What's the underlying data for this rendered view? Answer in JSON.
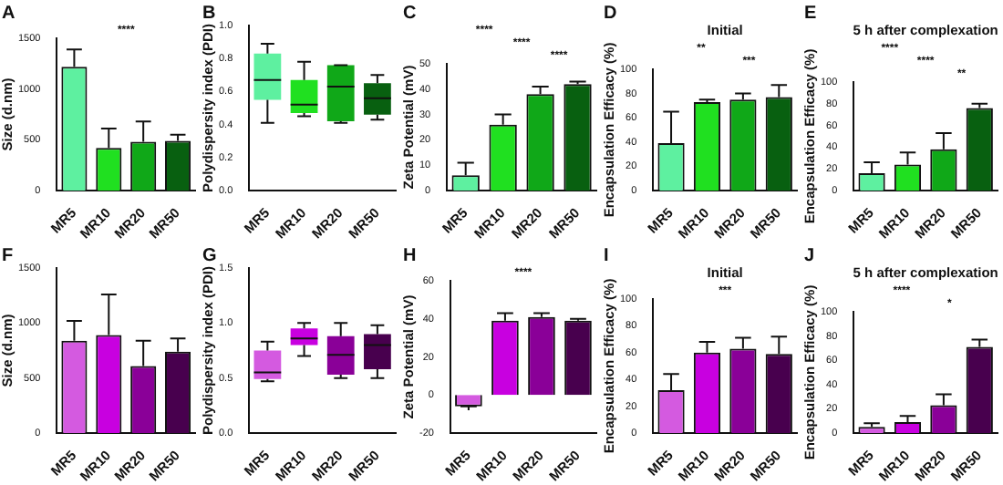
{
  "chart_data": [
    {
      "type": "bar",
      "categories": [
        "MR5",
        "MR10",
        "MR20",
        "MR50"
      ],
      "values": [
        1220,
        420,
        480,
        490
      ],
      "errors": [
        [
          1220,
          1390
        ],
        [
          420,
          610
        ],
        [
          480,
          680
        ],
        [
          490,
          550
        ]
      ],
      "colors": [
        "#5ef0a0",
        "#20e020",
        "#10a818",
        "#086010"
      ],
      "ylabel": "Size (d.nm)",
      "ylim": [
        0,
        1500
      ],
      "yticks": [
        0,
        500,
        1000,
        1500
      ],
      "annotations": [
        "A",
        "****"
      ]
    },
    {
      "type": "box",
      "categories": [
        "MR5",
        "MR10",
        "MR20",
        "MR50"
      ],
      "boxes": [
        {
          "low": 0.41,
          "q1": 0.55,
          "median": 0.67,
          "q3": 0.83,
          "high": 0.89
        },
        {
          "low": 0.45,
          "q1": 0.47,
          "median": 0.52,
          "q3": 0.67,
          "high": 0.78
        },
        {
          "low": 0.41,
          "q1": 0.42,
          "median": 0.63,
          "q3": 0.76,
          "high": 0.76
        },
        {
          "low": 0.43,
          "q1": 0.46,
          "median": 0.56,
          "q3": 0.65,
          "high": 0.7
        }
      ],
      "colors": [
        "#5ef0a0",
        "#20e020",
        "#10a818",
        "#086010"
      ],
      "ylabel": "Polydispersity index (PDI)",
      "ylim": [
        0,
        1
      ],
      "yticks": [
        {
          "value": 0,
          "label": "0.0"
        },
        {
          "value": 0.2,
          "label": "0.2"
        },
        {
          "value": 0.4,
          "label": "0.4"
        },
        {
          "value": 0.6,
          "label": "0.6"
        },
        {
          "value": 0.8,
          "label": "0.8"
        },
        {
          "value": 1,
          "label": "1.0"
        }
      ],
      "annotations": [
        "B"
      ]
    },
    {
      "type": "bar",
      "categories": [
        "MR5",
        "MR10",
        "MR20",
        "MR50"
      ],
      "values": [
        6,
        26,
        38,
        42
      ],
      "errors": [
        [
          6,
          11
        ],
        [
          26,
          30
        ],
        [
          38,
          41
        ],
        [
          42,
          43
        ]
      ],
      "colors": [
        "#5ef0a0",
        "#20e020",
        "#10a818",
        "#086010"
      ],
      "ylabel": "Zeta Potential (mV)",
      "ylim": [
        0,
        50
      ],
      "yticks": [
        0,
        10,
        20,
        30,
        40,
        50
      ],
      "annotations": [
        "C",
        "****",
        "****",
        "****"
      ]
    },
    {
      "type": "bar",
      "title": "Initial",
      "categories": [
        "MR5",
        "MR10",
        "MR20",
        "MR50"
      ],
      "values": [
        39,
        73,
        75,
        77
      ],
      "errors": [
        [
          39,
          65
        ],
        [
          73,
          75
        ],
        [
          75,
          80
        ],
        [
          77,
          87
        ]
      ],
      "colors": [
        "#5ef0a0",
        "#20e020",
        "#10a818",
        "#086010"
      ],
      "ylabel": "Encapsulation Efficacy (%)",
      "ylim": [
        0,
        100
      ],
      "yticks": [
        0,
        20,
        40,
        60,
        80,
        100
      ],
      "annotations": [
        "D",
        "**",
        "***"
      ]
    },
    {
      "type": "bar",
      "title": "5 h after complexation",
      "categories": [
        "MR5",
        "MR10",
        "MR20",
        "MR50"
      ],
      "values": [
        16,
        24,
        38,
        76
      ],
      "errors": [
        [
          16,
          26
        ],
        [
          24,
          35
        ],
        [
          38,
          53
        ],
        [
          76,
          80
        ]
      ],
      "colors": [
        "#5ef0a0",
        "#20e020",
        "#10a818",
        "#086010"
      ],
      "ylabel": "Encapsulation Efficacy (%)",
      "ylim": [
        0,
        100
      ],
      "yticks": [
        0,
        20,
        40,
        60,
        80,
        100
      ],
      "annotations": [
        "E",
        "****",
        "****",
        "**"
      ]
    },
    {
      "type": "bar",
      "categories": [
        "MR5",
        "MR10",
        "MR20",
        "MR50"
      ],
      "values": [
        840,
        890,
        610,
        740
      ],
      "errors": [
        [
          840,
          1020
        ],
        [
          890,
          1260
        ],
        [
          610,
          840
        ],
        [
          740,
          860
        ]
      ],
      "colors": [
        "#d45ae0",
        "#c800e0",
        "#8a0098",
        "#48004e"
      ],
      "ylabel": "Size (d.nm)",
      "ylim": [
        0,
        1500
      ],
      "yticks": [
        0,
        500,
        1000,
        1500
      ],
      "annotations": [
        "F"
      ]
    },
    {
      "type": "box",
      "categories": [
        "MR5",
        "MR10",
        "MR20",
        "MR50"
      ],
      "boxes": [
        {
          "low": 0.47,
          "q1": 0.49,
          "median": 0.55,
          "q3": 0.75,
          "high": 0.83
        },
        {
          "low": 0.7,
          "q1": 0.8,
          "median": 0.86,
          "q3": 0.95,
          "high": 1.0
        },
        {
          "low": 0.5,
          "q1": 0.53,
          "median": 0.71,
          "q3": 0.88,
          "high": 1.0
        },
        {
          "low": 0.5,
          "q1": 0.58,
          "median": 0.8,
          "q3": 0.9,
          "high": 0.98
        }
      ],
      "colors": [
        "#d45ae0",
        "#c800e0",
        "#8a0098",
        "#48004e"
      ],
      "ylabel": "Polydispersity index (PDI)",
      "ylim": [
        0,
        1.5
      ],
      "yticks": [
        {
          "value": 0,
          "label": "0.0"
        },
        {
          "value": 0.5,
          "label": "0.5"
        },
        {
          "value": 1,
          "label": "1.0"
        },
        {
          "value": 1.5,
          "label": "1.5"
        }
      ],
      "annotations": [
        "G"
      ]
    },
    {
      "type": "bar",
      "categories": [
        "MR5",
        "MR10",
        "MR20",
        "MR50"
      ],
      "values": [
        -6,
        39,
        41,
        39
      ],
      "errors": [
        [
          -8,
          -6
        ],
        [
          39,
          43
        ],
        [
          41,
          43
        ],
        [
          39,
          40
        ]
      ],
      "colors": [
        "#d45ae0",
        "#c800e0",
        "#8a0098",
        "#48004e"
      ],
      "ylabel": "Zeta Potential (mV)",
      "ylim": [
        -20,
        60
      ],
      "yticks": [
        -20,
        0,
        20,
        40,
        60
      ],
      "annotations": [
        "H",
        "****"
      ]
    },
    {
      "type": "bar",
      "title": "Initial",
      "categories": [
        "MR5",
        "MR10",
        "MR20",
        "MR50"
      ],
      "values": [
        32,
        60,
        63,
        59
      ],
      "errors": [
        [
          32,
          44
        ],
        [
          60,
          68
        ],
        [
          63,
          71
        ],
        [
          59,
          72
        ]
      ],
      "colors": [
        "#d45ae0",
        "#c800e0",
        "#8a0098",
        "#48004e"
      ],
      "ylabel": "Encapsulation Efficacy (%)",
      "ylim": [
        0,
        100
      ],
      "yticks": [
        0,
        20,
        40,
        60,
        80,
        100
      ],
      "annotations": [
        "I",
        "***"
      ]
    },
    {
      "type": "bar",
      "title": "5 h after complexation",
      "categories": [
        "MR5",
        "MR10",
        "MR20",
        "MR50"
      ],
      "values": [
        5,
        9,
        23,
        71
      ],
      "errors": [
        [
          5,
          8
        ],
        [
          9,
          14
        ],
        [
          23,
          32
        ],
        [
          71,
          77
        ]
      ],
      "colors": [
        "#d45ae0",
        "#c800e0",
        "#8a0098",
        "#48004e"
      ],
      "ylabel": "Encapsulation Efficacy (%)",
      "ylim": [
        0,
        100
      ],
      "yticks": [
        0,
        20,
        40,
        60,
        80,
        100
      ],
      "annotations": [
        "J",
        "****",
        "*"
      ]
    }
  ]
}
